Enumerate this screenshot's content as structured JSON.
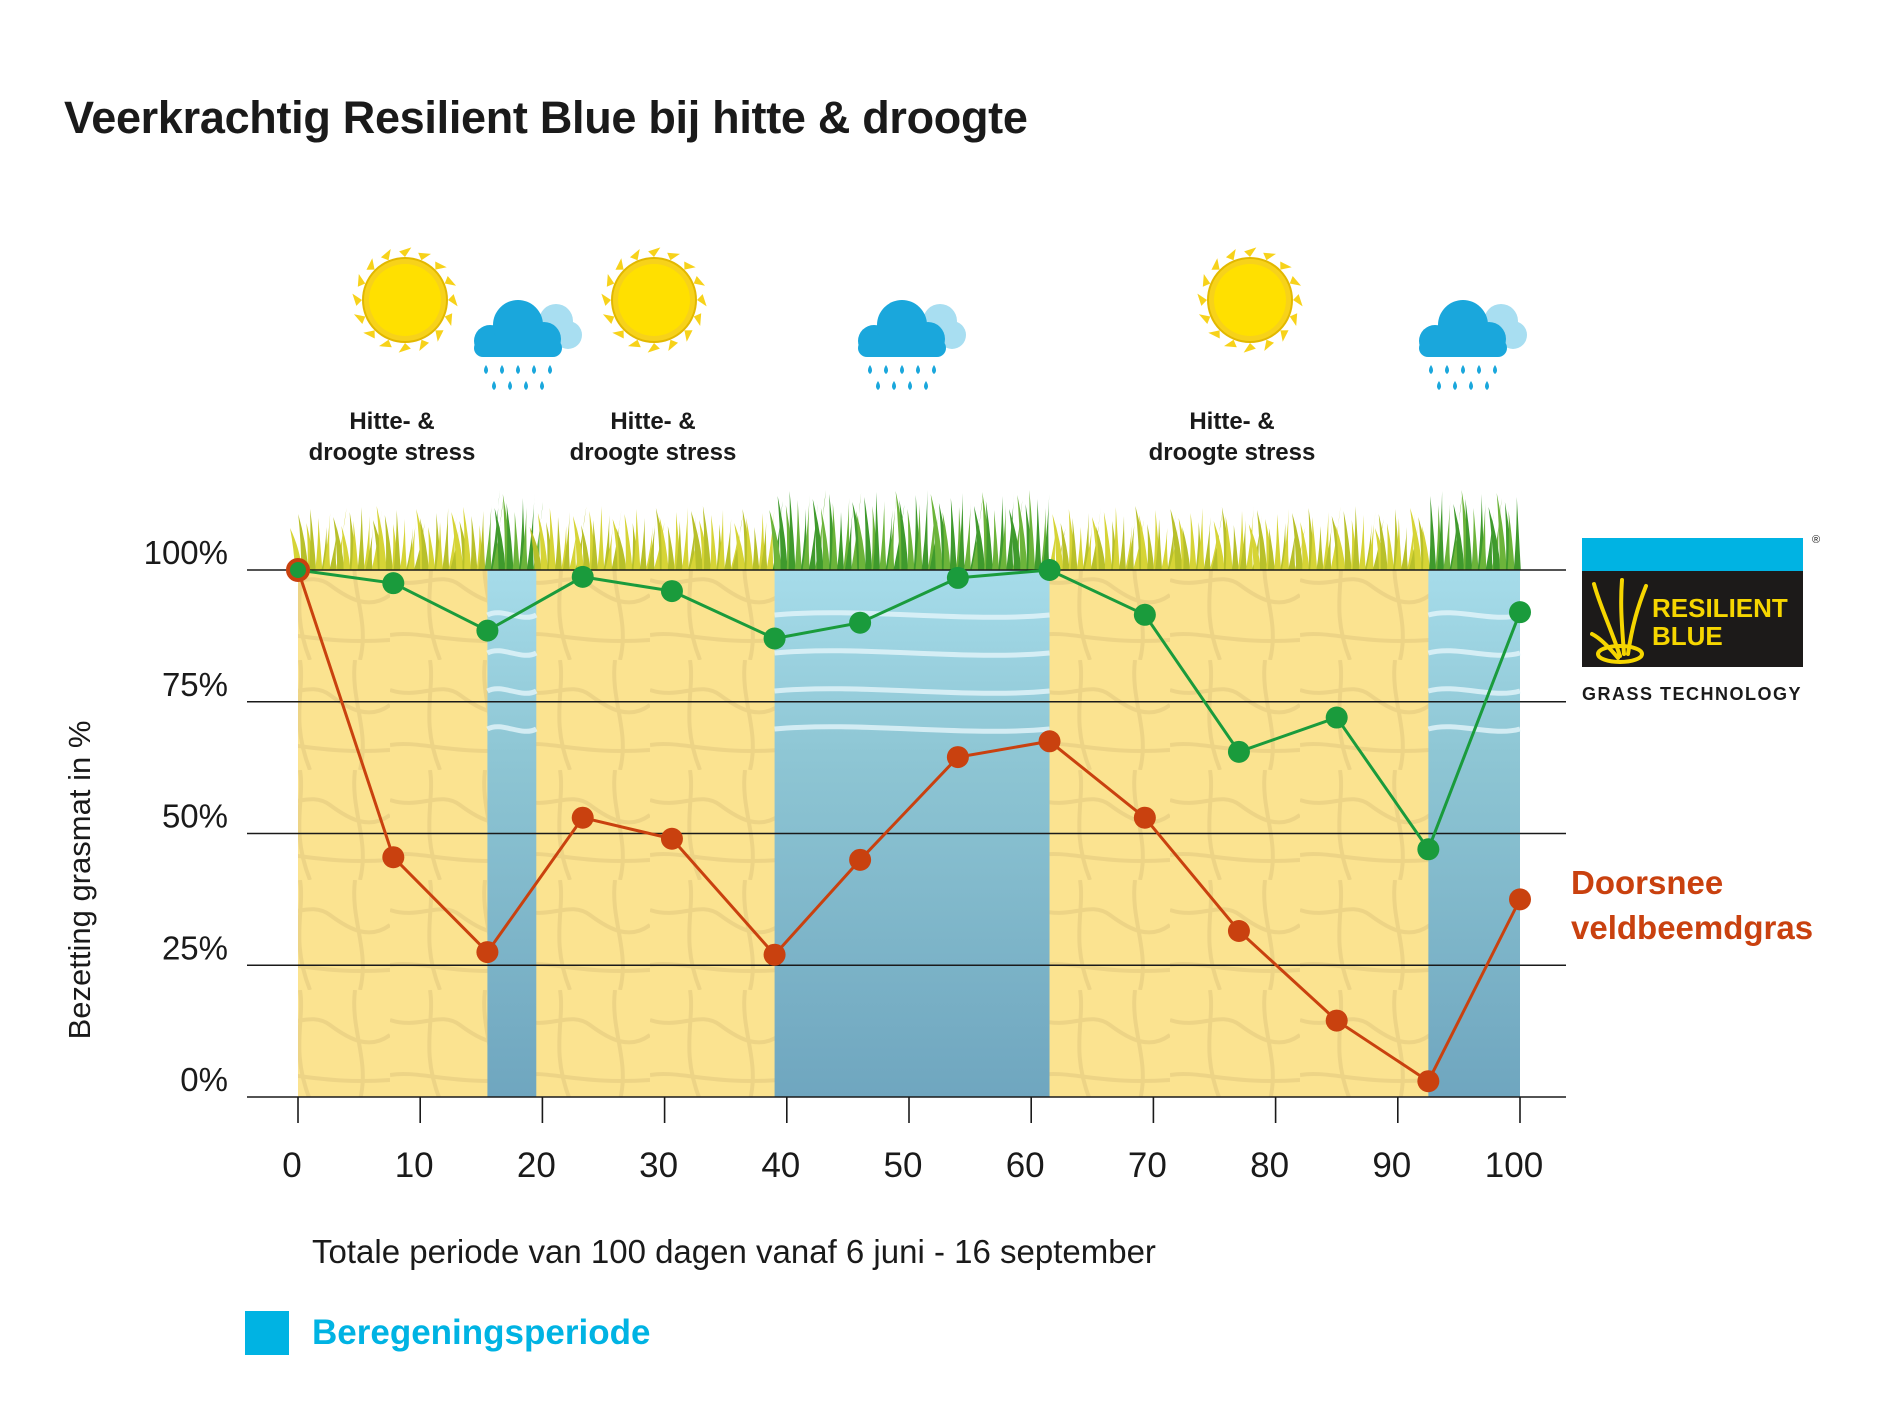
{
  "title": "Veerkrachtig Resilient Blue bij hitte & droogte",
  "stress_labels": [
    {
      "line1": "Hitte- &",
      "line2": "droogte stress"
    },
    {
      "line1": "Hitte- &",
      "line2": "droogte stress"
    },
    {
      "line1": "Hitte- &",
      "line2": "droogte stress"
    }
  ],
  "legend": {
    "label": "Beregeningsperiode",
    "color": "#00b3e3"
  },
  "series_label": {
    "line1": "Doorsnee",
    "line2": "veldbeemdgras"
  },
  "logo": {
    "line1": "RESILIENT",
    "line2": "BLUE",
    "subtitle": "GRASS TECHNOLOGY",
    "registered": "®"
  },
  "icons": [
    "sun-icon",
    "rain-cloud-icon",
    "sun-icon",
    "rain-cloud-icon",
    "sun-icon",
    "rain-cloud-icon"
  ],
  "chart_data": {
    "type": "line",
    "xlabel": "Totale periode van 100 dagen vanaf 6 juni - 16 september",
    "ylabel": "Bezetting grasmat in %",
    "xlim": [
      0,
      100
    ],
    "ylim": [
      0,
      100
    ],
    "x_ticks": [
      0,
      10,
      20,
      30,
      40,
      50,
      60,
      70,
      80,
      90,
      100
    ],
    "x_tick_labels": [
      "0",
      "10",
      "20",
      "30",
      "40",
      "50",
      "60",
      "70",
      "80",
      "90",
      "100"
    ],
    "y_ticks": [
      0,
      25,
      50,
      75,
      100
    ],
    "y_tick_labels": [
      "0%",
      "25%",
      "50%",
      "75%",
      "100%"
    ],
    "irrigation_periods": [
      [
        15.5,
        19.5
      ],
      [
        39,
        61.5
      ],
      [
        92.5,
        100
      ]
    ],
    "series": [
      {
        "color": "#1a9b3c",
        "x": [
          0,
          7.8,
          15.5,
          23.3,
          30.6,
          39,
          46,
          54,
          61.5,
          69.3,
          77,
          85,
          92.5,
          100
        ],
        "values": [
          100,
          97.5,
          88.5,
          98.7,
          96,
          87,
          90,
          98.5,
          100,
          91.5,
          65.5,
          72,
          47,
          92
        ]
      },
      {
        "name": "Doorsnee veldbeemdgras",
        "color": "#c9410f",
        "x": [
          0,
          7.8,
          15.5,
          23.3,
          30.6,
          39,
          46,
          54,
          61.5,
          69.3,
          77,
          85,
          92.5,
          100
        ],
        "values": [
          100,
          45.5,
          27.5,
          53,
          49,
          27,
          45,
          64.5,
          67.5,
          53,
          31.5,
          14.5,
          3,
          37.5
        ]
      }
    ]
  }
}
